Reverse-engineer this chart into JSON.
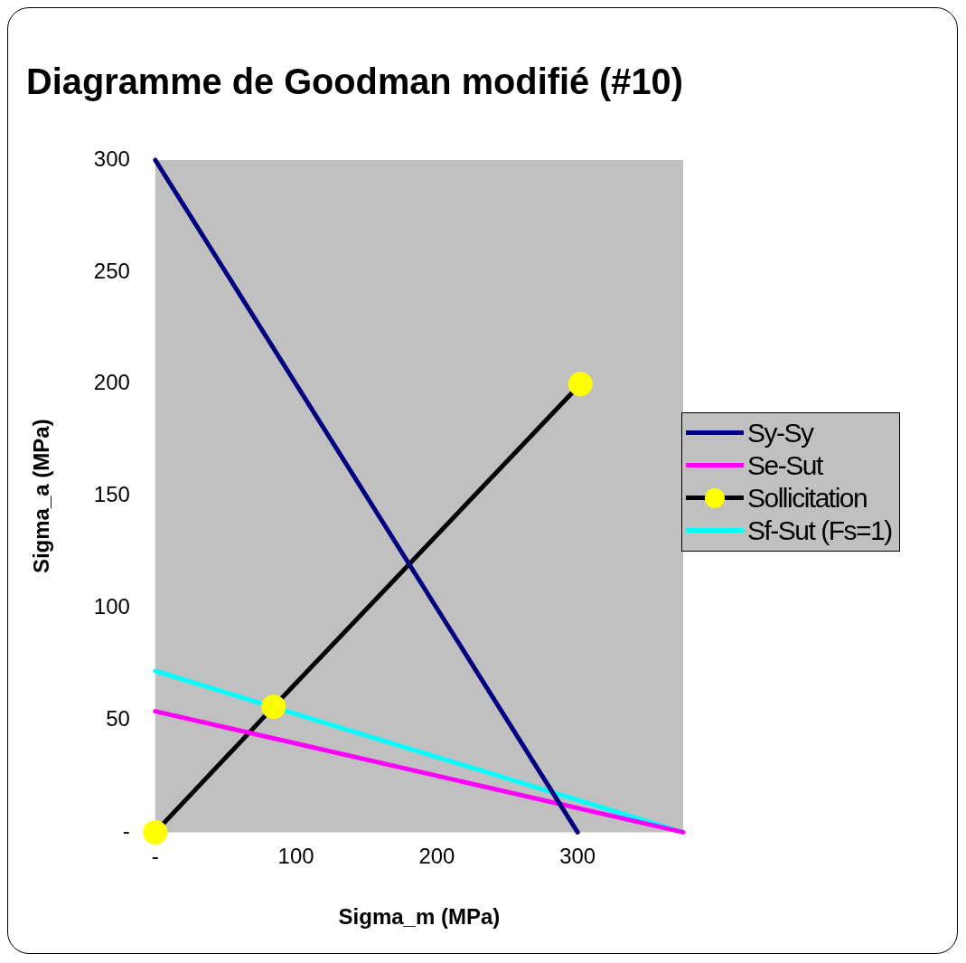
{
  "chart_data": {
    "type": "line",
    "title": "Diagramme de Goodman modifié (#10)",
    "xlabel": "Sigma_m (MPa)",
    "ylabel": "Sigma_a (MPa)",
    "xlim": [
      0,
      375
    ],
    "xticks": [
      {
        "value": 0,
        "label": "-"
      },
      100,
      200,
      300
    ],
    "ylim": [
      0,
      300
    ],
    "yticks": [
      {
        "value": 0,
        "label": "-"
      },
      50,
      100,
      150,
      200,
      250,
      300
    ],
    "grid": false,
    "legend": "right",
    "line_style": "solid",
    "series": [
      {
        "name": "Sy-Sy",
        "color": "#000080",
        "x": [
          0,
          300
        ],
        "values": [
          300,
          0
        ],
        "marker": "none"
      },
      {
        "name": "Se-Sut",
        "color": "#ff00ff",
        "x": [
          0,
          375
        ],
        "values": [
          54,
          0
        ],
        "marker": "none"
      },
      {
        "name": "Sollicitation",
        "color": "#000000",
        "x": [
          0,
          84,
          302
        ],
        "values": [
          0,
          56,
          200
        ],
        "marker": "circle"
      },
      {
        "name": "Sf-Sut (Fs=1)",
        "color": "#00ffff",
        "x": [
          0,
          375
        ],
        "values": [
          72,
          0
        ],
        "marker": "none"
      }
    ]
  }
}
